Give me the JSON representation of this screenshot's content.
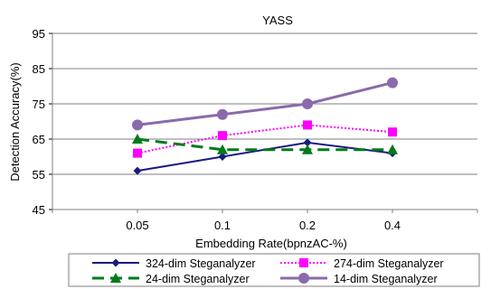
{
  "chart_data": {
    "type": "line",
    "title": "YASS",
    "xlabel": "Embedding  Rate(bpnzAC-%)",
    "ylabel": "Detection  Accuracy(%)",
    "categories": [
      "0.05",
      "0.1",
      "0.2",
      "0.4"
    ],
    "ylim": [
      45,
      95
    ],
    "yticks": [
      45,
      55,
      65,
      75,
      85,
      95
    ],
    "grid": "horizontal",
    "legend_position": "bottom",
    "series": [
      {
        "name": "324-dim Steganalyzer",
        "values": [
          56,
          60,
          64,
          61
        ],
        "color": "#1a1a80",
        "marker": "diamond",
        "dash": "solid"
      },
      {
        "name": "274-dim Steganalyzer",
        "values": [
          61,
          66,
          69,
          67
        ],
        "color": "#ff00ff",
        "marker": "square",
        "dash": "dotted"
      },
      {
        "name": "24-dim Steganalyzer",
        "values": [
          65,
          62,
          62,
          62
        ],
        "color": "#007a1a",
        "marker": "triangle",
        "dash": "dashed"
      },
      {
        "name": "14-dim Steganalyzer",
        "values": [
          69,
          72,
          75,
          81
        ],
        "color": "#8a6aac",
        "marker": "circle",
        "dash": "solid"
      }
    ]
  }
}
